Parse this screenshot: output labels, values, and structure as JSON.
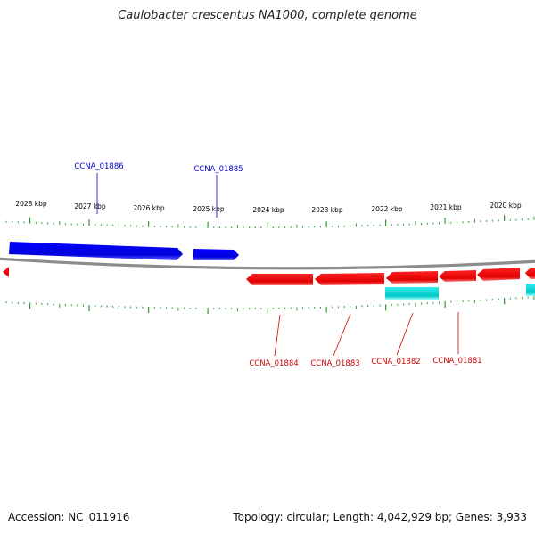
{
  "title": "Caulobacter crescentus NA1000, complete genome",
  "footer": {
    "accession": "Accession: NC_011916",
    "summary": "Topology: circular; Length: 4,042,929 bp; Genes: 3,933"
  },
  "ruler": {
    "labels": [
      "2028 kbp",
      "2027 kbp",
      "2026 kbp",
      "2025 kbp",
      "2024 kbp",
      "2023 kbp",
      "2022 kbp",
      "2021 kbp",
      "2020 kbp"
    ]
  },
  "genes": {
    "forward": [
      {
        "locus": "CCNA_01886",
        "color": "#0000ee"
      },
      {
        "locus": "CCNA_01885",
        "color": "#0000ee"
      }
    ],
    "reverse": [
      {
        "locus": "CCNA_01884",
        "color": "#ee0000"
      },
      {
        "locus": "CCNA_01883",
        "color": "#ee0000"
      },
      {
        "locus": "CCNA_01882",
        "color": "#ee0000"
      },
      {
        "locus": "CCNA_01881",
        "color": "#ee0000"
      }
    ],
    "feature_color": "#00cccc"
  }
}
